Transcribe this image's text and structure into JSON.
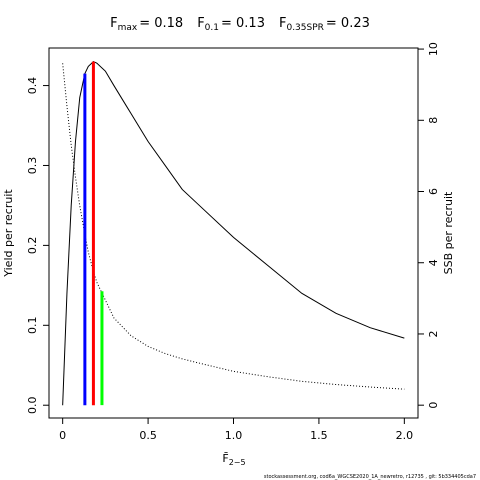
{
  "chart_data": {
    "type": "line",
    "title_parts": [
      {
        "base": "F",
        "sub": "max",
        "eq": "= 0.18"
      },
      {
        "base": "F",
        "sub": "0.1",
        "eq": "= 0.13"
      },
      {
        "base": "F",
        "sub": "0.35SPR",
        "eq": "= 0.23"
      }
    ],
    "x_label": {
      "base": "F̄",
      "sub": "2−5"
    },
    "y_label": "Yield per recruit",
    "y2_label": "SSB per recruit",
    "footer": "stockassessment.org, cod6a_WGCSE2020_1A_newretro, r12735 , git: 5b334405cda7",
    "x": [
      0,
      0.025,
      0.05,
      0.075,
      0.1,
      0.13,
      0.15,
      0.18,
      0.2,
      0.25,
      0.3,
      0.4,
      0.5,
      0.6,
      0.7,
      0.8,
      1.0,
      1.2,
      1.4,
      1.6,
      1.8,
      2.0
    ],
    "series": [
      {
        "axis": "y",
        "color": "#000000",
        "dashed": false,
        "values": [
          0,
          0.14,
          0.25,
          0.33,
          0.385,
          0.415,
          0.424,
          0.43,
          0.428,
          0.418,
          0.4,
          0.365,
          0.33,
          0.3,
          0.27,
          0.25,
          0.21,
          0.175,
          0.14,
          0.115,
          0.097,
          0.084
        ]
      },
      {
        "axis": "y2",
        "color": "#000000",
        "dashed": true,
        "values": [
          9.6,
          8.4,
          7.3,
          6.4,
          5.6,
          4.8,
          4.3,
          3.75,
          3.45,
          2.95,
          2.45,
          1.95,
          1.65,
          1.45,
          1.3,
          1.18,
          0.95,
          0.8,
          0.67,
          0.58,
          0.51,
          0.45
        ]
      }
    ],
    "reference_lines": [
      {
        "x": 0.18,
        "value": 0.43,
        "axis": "y",
        "color": "#ff0000"
      },
      {
        "x": 0.13,
        "value": 0.415,
        "axis": "y",
        "color": "#0000ff"
      },
      {
        "x": 0.23,
        "value": 3.2,
        "axis": "y2",
        "color": "#00ff00"
      }
    ],
    "xlim": [
      -0.08,
      2.08
    ],
    "ylim": [
      -0.016,
      0.447
    ],
    "y2lim": [
      -0.36,
      10.03
    ],
    "xticks": [
      0,
      0.5,
      {
        "value": 1,
        "label": "1.0"
      },
      1.5,
      {
        "value": 2,
        "label": "2.0"
      }
    ],
    "yticks": [
      {
        "value": 0,
        "label": "0.0"
      },
      0.1,
      0.2,
      0.3,
      0.4
    ],
    "y2ticks": [
      0,
      2,
      4,
      6,
      8,
      10
    ]
  }
}
